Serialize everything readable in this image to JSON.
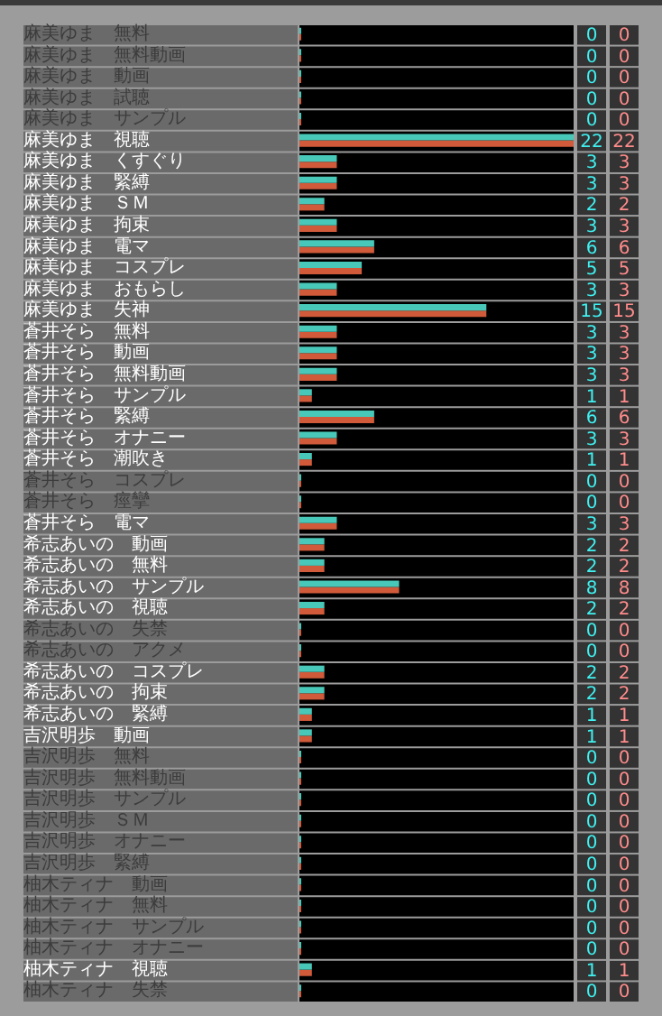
{
  "chart_data": {
    "type": "bar",
    "orientation": "horizontal",
    "data_labels": true,
    "categories": [
      "麻美ゆま　無料",
      "麻美ゆま　無料動画",
      "麻美ゆま　動画",
      "麻美ゆま　試聴",
      "麻美ゆま　サンプル",
      "麻美ゆま　視聴",
      "麻美ゆま　くすぐり",
      "麻美ゆま　緊縛",
      "麻美ゆま　ＳＭ",
      "麻美ゆま　拘束",
      "麻美ゆま　電マ",
      "麻美ゆま　コスプレ",
      "麻美ゆま　おもらし",
      "麻美ゆま　失神",
      "蒼井そら　無料",
      "蒼井そら　動画",
      "蒼井そら　無料動画",
      "蒼井そら　サンプル",
      "蒼井そら　緊縛",
      "蒼井そら　オナニー",
      "蒼井そら　潮吹き",
      "蒼井そら　コスプレ",
      "蒼井そら　痙攣",
      "蒼井そら　電マ",
      "希志あいの　動画",
      "希志あいの　無料",
      "希志あいの　サンプル",
      "希志あいの　視聴",
      "希志あいの　失禁",
      "希志あいの　アクメ",
      "希志あいの　コスプレ",
      "希志あいの　拘束",
      "希志あいの　緊縛",
      "吉沢明歩　動画",
      "吉沢明歩　無料",
      "吉沢明歩　無料動画",
      "吉沢明歩　サンプル",
      "吉沢明歩　ＳＭ",
      "吉沢明歩　オナニー",
      "吉沢明歩　緊縛",
      "柚木ティナ　動画",
      "柚木ティナ　無料",
      "柚木ティナ　サンプル",
      "柚木ティナ　オナニー",
      "柚木ティナ　視聴",
      "柚木ティナ　失禁"
    ],
    "series": [
      {
        "color": "#48c8b8",
        "values": [
          0,
          0,
          0,
          0,
          0,
          22,
          3,
          3,
          2,
          3,
          6,
          5,
          3,
          15,
          3,
          3,
          3,
          1,
          6,
          3,
          1,
          0,
          0,
          3,
          2,
          2,
          8,
          2,
          0,
          0,
          2,
          2,
          1,
          1,
          0,
          0,
          0,
          0,
          0,
          0,
          0,
          0,
          0,
          0,
          1,
          0
        ]
      },
      {
        "color": "#d05a3a",
        "values": [
          0,
          0,
          0,
          0,
          0,
          22,
          3,
          3,
          2,
          3,
          6,
          5,
          3,
          15,
          3,
          3,
          3,
          1,
          6,
          3,
          1,
          0,
          0,
          3,
          2,
          2,
          8,
          2,
          0,
          0,
          2,
          2,
          1,
          1,
          0,
          0,
          0,
          0,
          0,
          0,
          0,
          0,
          0,
          0,
          1,
          0
        ]
      }
    ]
  }
}
